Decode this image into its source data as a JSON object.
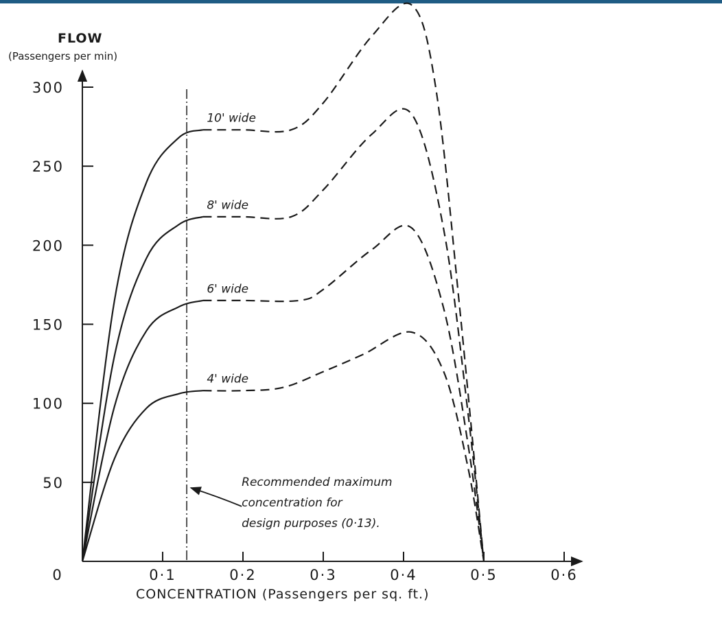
{
  "colors": {
    "top_bar": "#1f5c84",
    "ink": "#1a1a1a"
  },
  "chart_data": {
    "type": "line",
    "ylabel": "FLOW",
    "ylabel_sub": "(Passengers per min)",
    "xlabel": "CONCENTRATION (Passengers per sq. ft.)",
    "xlim": [
      0,
      0.6
    ],
    "ylim": [
      0,
      300
    ],
    "x_ticks": [
      {
        "value": 0,
        "label": "0"
      },
      {
        "value": 0.1,
        "label": "0·1"
      },
      {
        "value": 0.2,
        "label": "0·2"
      },
      {
        "value": 0.3,
        "label": "0·3"
      },
      {
        "value": 0.4,
        "label": "0·4"
      },
      {
        "value": 0.5,
        "label": "0·5"
      },
      {
        "value": 0.6,
        "label": "0·6"
      }
    ],
    "y_ticks": [
      {
        "value": 50,
        "label": "50"
      },
      {
        "value": 100,
        "label": "100"
      },
      {
        "value": 150,
        "label": "150"
      },
      {
        "value": 200,
        "label": "200"
      },
      {
        "value": 250,
        "label": "250"
      },
      {
        "value": 300,
        "label": "300"
      }
    ],
    "grid": false,
    "series": [
      {
        "name": "4' wide",
        "solid": [
          [
            0,
            0
          ],
          [
            0.04,
            65
          ],
          [
            0.08,
            97
          ],
          [
            0.12,
            106
          ],
          [
            0.15,
            108
          ]
        ],
        "dashed": [
          [
            0.15,
            108
          ],
          [
            0.2,
            108
          ],
          [
            0.25,
            110
          ],
          [
            0.3,
            120
          ],
          [
            0.35,
            131
          ],
          [
            0.41,
            145
          ],
          [
            0.45,
            120
          ],
          [
            0.48,
            60
          ],
          [
            0.5,
            0
          ]
        ],
        "label_at": [
          0.155,
          113
        ]
      },
      {
        "name": "6' wide",
        "solid": [
          [
            0,
            0
          ],
          [
            0.04,
            98
          ],
          [
            0.08,
            146
          ],
          [
            0.12,
            161
          ],
          [
            0.15,
            165
          ]
        ],
        "dashed": [
          [
            0.15,
            165
          ],
          [
            0.2,
            165
          ],
          [
            0.27,
            165
          ],
          [
            0.3,
            172
          ],
          [
            0.36,
            197
          ],
          [
            0.41,
            211
          ],
          [
            0.45,
            160
          ],
          [
            0.48,
            75
          ],
          [
            0.5,
            0
          ]
        ],
        "label_at": [
          0.155,
          170
        ]
      },
      {
        "name": "8' wide",
        "solid": [
          [
            0,
            0
          ],
          [
            0.04,
            130
          ],
          [
            0.08,
            192
          ],
          [
            0.12,
            213
          ],
          [
            0.15,
            218
          ]
        ],
        "dashed": [
          [
            0.15,
            218
          ],
          [
            0.2,
            218
          ],
          [
            0.26,
            218
          ],
          [
            0.3,
            235
          ],
          [
            0.36,
            270
          ],
          [
            0.41,
            283
          ],
          [
            0.45,
            210
          ],
          [
            0.48,
            95
          ],
          [
            0.5,
            0
          ]
        ],
        "label_at": [
          0.155,
          223
        ]
      },
      {
        "name": "10' wide",
        "solid": [
          [
            0,
            0
          ],
          [
            0.04,
            165
          ],
          [
            0.08,
            240
          ],
          [
            0.12,
            268
          ],
          [
            0.15,
            273
          ]
        ],
        "dashed": [
          [
            0.15,
            273
          ],
          [
            0.2,
            273
          ],
          [
            0.26,
            273
          ],
          [
            0.3,
            290
          ],
          [
            0.36,
            332
          ],
          [
            0.41,
            352
          ],
          [
            0.44,
            300
          ],
          [
            0.47,
            160
          ],
          [
            0.5,
            0
          ]
        ],
        "label_at": [
          0.155,
          278
        ]
      }
    ],
    "reference_line": {
      "x": 0.13
    },
    "annotation": {
      "lines": [
        "Recommended maximum",
        "concentration for",
        "design purposes (0·13)."
      ],
      "anchor": [
        0.195,
        40
      ]
    }
  }
}
